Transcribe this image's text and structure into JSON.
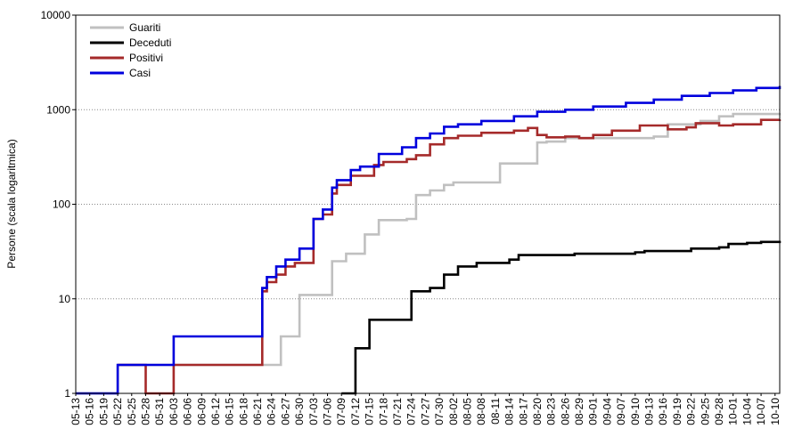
{
  "chart_data": {
    "type": "line",
    "ylabel": "Persone (scala logaritmica)",
    "y_scale": "log",
    "ylim": [
      1,
      10000
    ],
    "y_ticks": [
      "1",
      "10",
      "100",
      "1000",
      "10000"
    ],
    "y_tick_values": [
      1,
      10,
      100,
      1000,
      10000
    ],
    "x_range": [
      "05-13",
      "10-11"
    ],
    "x_ticks": [
      "05-13",
      "05-16",
      "05-19",
      "05-22",
      "05-25",
      "05-28",
      "05-31",
      "06-03",
      "06-06",
      "06-09",
      "06-12",
      "06-15",
      "06-18",
      "06-21",
      "06-24",
      "06-27",
      "06-30",
      "07-03",
      "07-06",
      "07-09",
      "07-12",
      "07-15",
      "07-18",
      "07-21",
      "07-24",
      "07-27",
      "07-30",
      "08-02",
      "08-05",
      "08-08",
      "08-11",
      "08-14",
      "08-17",
      "08-20",
      "08-23",
      "08-26",
      "08-29",
      "09-01",
      "09-04",
      "09-07",
      "09-10",
      "09-13",
      "09-16",
      "09-19",
      "09-22",
      "09-25",
      "09-28",
      "10-01",
      "10-04",
      "10-07",
      "10-10"
    ],
    "grid": "horizontal dotted",
    "legend": "top-left",
    "series": [
      {
        "name": "Guariti",
        "color": "#c0c0c0",
        "points": [
          [
            "05-13",
            1
          ],
          [
            "05-22",
            2
          ],
          [
            "06-22",
            2
          ],
          [
            "06-26",
            4
          ],
          [
            "06-30",
            11
          ],
          [
            "07-07",
            25
          ],
          [
            "07-10",
            30
          ],
          [
            "07-14",
            48
          ],
          [
            "07-17",
            68
          ],
          [
            "07-23",
            70
          ],
          [
            "07-25",
            125
          ],
          [
            "07-28",
            140
          ],
          [
            "07-31",
            160
          ],
          [
            "08-02",
            170
          ],
          [
            "08-05",
            170
          ],
          [
            "08-12",
            270
          ],
          [
            "08-18",
            270
          ],
          [
            "08-20",
            450
          ],
          [
            "08-22",
            460
          ],
          [
            "08-26",
            500
          ],
          [
            "09-14",
            520
          ],
          [
            "09-17",
            700
          ],
          [
            "09-24",
            760
          ],
          [
            "09-28",
            850
          ],
          [
            "10-01",
            900
          ],
          [
            "10-11",
            920
          ]
        ]
      },
      {
        "name": "Deceduti",
        "color": "#000000",
        "points": [
          [
            "07-09",
            1
          ],
          [
            "07-11",
            1
          ],
          [
            "07-12",
            3
          ],
          [
            "07-15",
            6
          ],
          [
            "07-24",
            12
          ],
          [
            "07-28",
            13
          ],
          [
            "07-31",
            18
          ],
          [
            "08-03",
            22
          ],
          [
            "08-07",
            24
          ],
          [
            "08-14",
            26
          ],
          [
            "08-16",
            29
          ],
          [
            "08-28",
            30
          ],
          [
            "09-10",
            31
          ],
          [
            "09-12",
            32
          ],
          [
            "09-22",
            34
          ],
          [
            "09-28",
            35
          ],
          [
            "09-30",
            38
          ],
          [
            "10-04",
            39
          ],
          [
            "10-07",
            40
          ],
          [
            "10-11",
            41
          ]
        ]
      },
      {
        "name": "Positivi",
        "color": "#a52a2a",
        "points": [
          [
            "05-22",
            2
          ],
          [
            "05-27",
            2
          ],
          [
            "05-28",
            1
          ],
          [
            "06-02",
            1
          ],
          [
            "06-03",
            2
          ],
          [
            "06-21",
            2
          ],
          [
            "06-22",
            12
          ],
          [
            "06-23",
            15
          ],
          [
            "06-25",
            18
          ],
          [
            "06-27",
            22
          ],
          [
            "06-29",
            24
          ],
          [
            "07-02",
            24
          ],
          [
            "07-03",
            70
          ],
          [
            "07-05",
            78
          ],
          [
            "07-07",
            130
          ],
          [
            "07-08",
            160
          ],
          [
            "07-11",
            200
          ],
          [
            "07-16",
            260
          ],
          [
            "07-18",
            280
          ],
          [
            "07-23",
            300
          ],
          [
            "07-25",
            330
          ],
          [
            "07-28",
            430
          ],
          [
            "07-31",
            500
          ],
          [
            "08-03",
            530
          ],
          [
            "08-08",
            570
          ],
          [
            "08-15",
            600
          ],
          [
            "08-18",
            640
          ],
          [
            "08-20",
            540
          ],
          [
            "08-22",
            510
          ],
          [
            "08-26",
            520
          ],
          [
            "08-29",
            500
          ],
          [
            "09-01",
            540
          ],
          [
            "09-05",
            600
          ],
          [
            "09-11",
            680
          ],
          [
            "09-17",
            620
          ],
          [
            "09-21",
            650
          ],
          [
            "09-23",
            720
          ],
          [
            "09-28",
            680
          ],
          [
            "10-01",
            700
          ],
          [
            "10-07",
            780
          ],
          [
            "10-11",
            790
          ]
        ]
      },
      {
        "name": "Casi",
        "color": "#0000dd",
        "points": [
          [
            "05-13",
            1
          ],
          [
            "05-22",
            2
          ],
          [
            "06-02",
            2
          ],
          [
            "06-03",
            4
          ],
          [
            "06-21",
            4
          ],
          [
            "06-22",
            13
          ],
          [
            "06-23",
            17
          ],
          [
            "06-25",
            22
          ],
          [
            "06-27",
            26
          ],
          [
            "06-30",
            34
          ],
          [
            "07-03",
            70
          ],
          [
            "07-05",
            88
          ],
          [
            "07-07",
            150
          ],
          [
            "07-08",
            180
          ],
          [
            "07-11",
            230
          ],
          [
            "07-13",
            250
          ],
          [
            "07-17",
            340
          ],
          [
            "07-22",
            400
          ],
          [
            "07-25",
            500
          ],
          [
            "07-28",
            560
          ],
          [
            "07-31",
            660
          ],
          [
            "08-03",
            700
          ],
          [
            "08-08",
            760
          ],
          [
            "08-15",
            850
          ],
          [
            "08-20",
            950
          ],
          [
            "08-26",
            1000
          ],
          [
            "09-01",
            1080
          ],
          [
            "09-08",
            1180
          ],
          [
            "09-14",
            1280
          ],
          [
            "09-20",
            1400
          ],
          [
            "09-26",
            1500
          ],
          [
            "10-01",
            1600
          ],
          [
            "10-06",
            1700
          ],
          [
            "10-11",
            1780
          ]
        ]
      }
    ]
  }
}
